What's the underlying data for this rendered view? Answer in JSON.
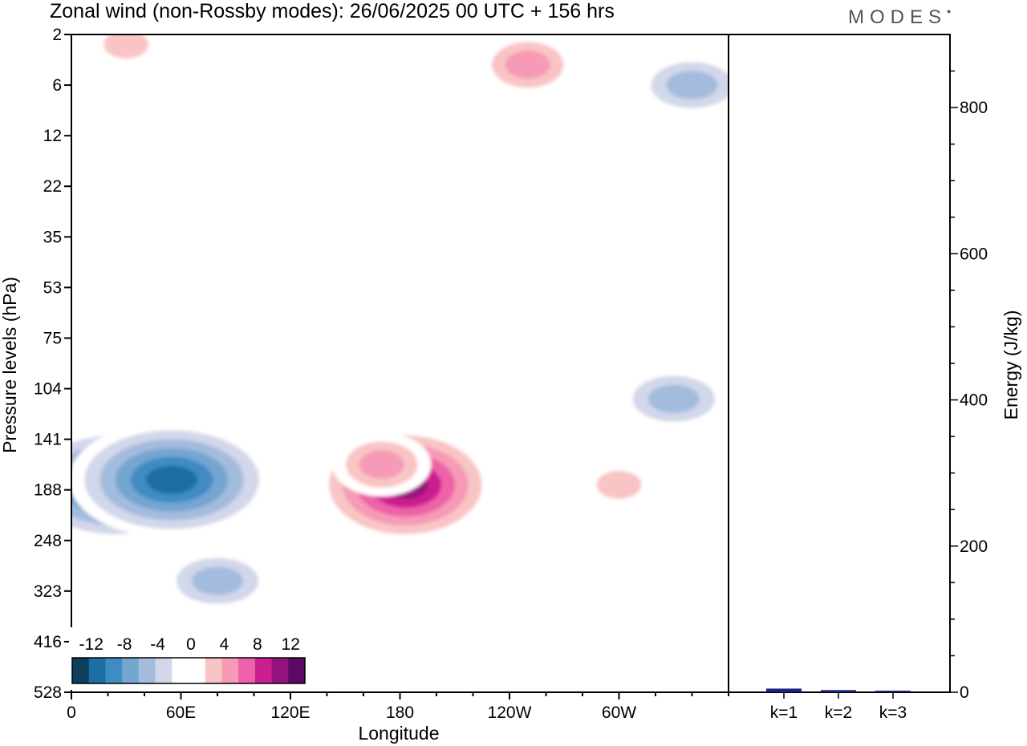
{
  "header": {
    "title": "Zonal wind (non-Rossby modes):  26/06/2025  00 UTC  + 156 hrs",
    "logo": "MODES"
  },
  "chart_data": [
    {
      "type": "heatmap",
      "title": "Zonal wind (non-Rossby modes):  26/06/2025  00 UTC  + 156 hrs",
      "xlabel": "Longitude",
      "ylabel": "Pressure levels (hPa)",
      "x_ticks": [
        {
          "label": "0",
          "lon": 0
        },
        {
          "label": "60E",
          "lon": 60
        },
        {
          "label": "120E",
          "lon": 120
        },
        {
          "label": "180",
          "lon": 180
        },
        {
          "label": "120W",
          "lon": 240
        },
        {
          "label": "60W",
          "lon": 300
        }
      ],
      "xlim": [
        0,
        360
      ],
      "y_levels": [
        "2",
        "6",
        "12",
        "22",
        "35",
        "53",
        "75",
        "104",
        "141",
        "188",
        "248",
        "323",
        "416",
        "528"
      ],
      "colorbar": {
        "tick_labels": [
          "-12",
          "-8",
          "-4",
          "0",
          "4",
          "8",
          "12"
        ],
        "colors": [
          "#0d3e5c",
          "#1d6ea2",
          "#3f8bc4",
          "#74a6d0",
          "#a3bcdd",
          "#d2d7ea",
          "#ffffff",
          "#ffffff",
          "#f9c4c4",
          "#f69ab6",
          "#ed62a8",
          "#cc1f8f",
          "#94127b",
          "#5c0a65"
        ]
      },
      "features": [
        {
          "lon": 183,
          "level": 8.9,
          "value": 12
        },
        {
          "lon": 25,
          "level": 8.9,
          "value": -12
        },
        {
          "lon": 55,
          "level": 8.8,
          "value": -12
        },
        {
          "lon": 80,
          "level": 10.8,
          "value": -6
        },
        {
          "lon": 170,
          "level": 8.5,
          "value": 6
        },
        {
          "lon": 300,
          "level": 8.9,
          "value": 4
        },
        {
          "lon": 330,
          "level": 7.2,
          "value": -6
        },
        {
          "lon": 340,
          "level": 1.0,
          "value": -6
        },
        {
          "lon": 250,
          "level": 0.6,
          "value": 6
        },
        {
          "lon": 30,
          "level": 0.2,
          "value": 4
        },
        {
          "lon": 190,
          "level": 10.8,
          "value": 2
        },
        {
          "lon": 60,
          "level": 12.4,
          "value": 2
        },
        {
          "lon": 140,
          "level": 12.8,
          "value": -2
        }
      ]
    },
    {
      "type": "bar",
      "ylabel": "Energy (J/kg)",
      "categories": [
        "k=1",
        "k=2",
        "k=3"
      ],
      "values": [
        5,
        3,
        1
      ],
      "ylim": [
        0,
        900
      ],
      "y_ticks": [
        0,
        200,
        400,
        600,
        800
      ],
      "bar_color": "#1a237e"
    }
  ]
}
